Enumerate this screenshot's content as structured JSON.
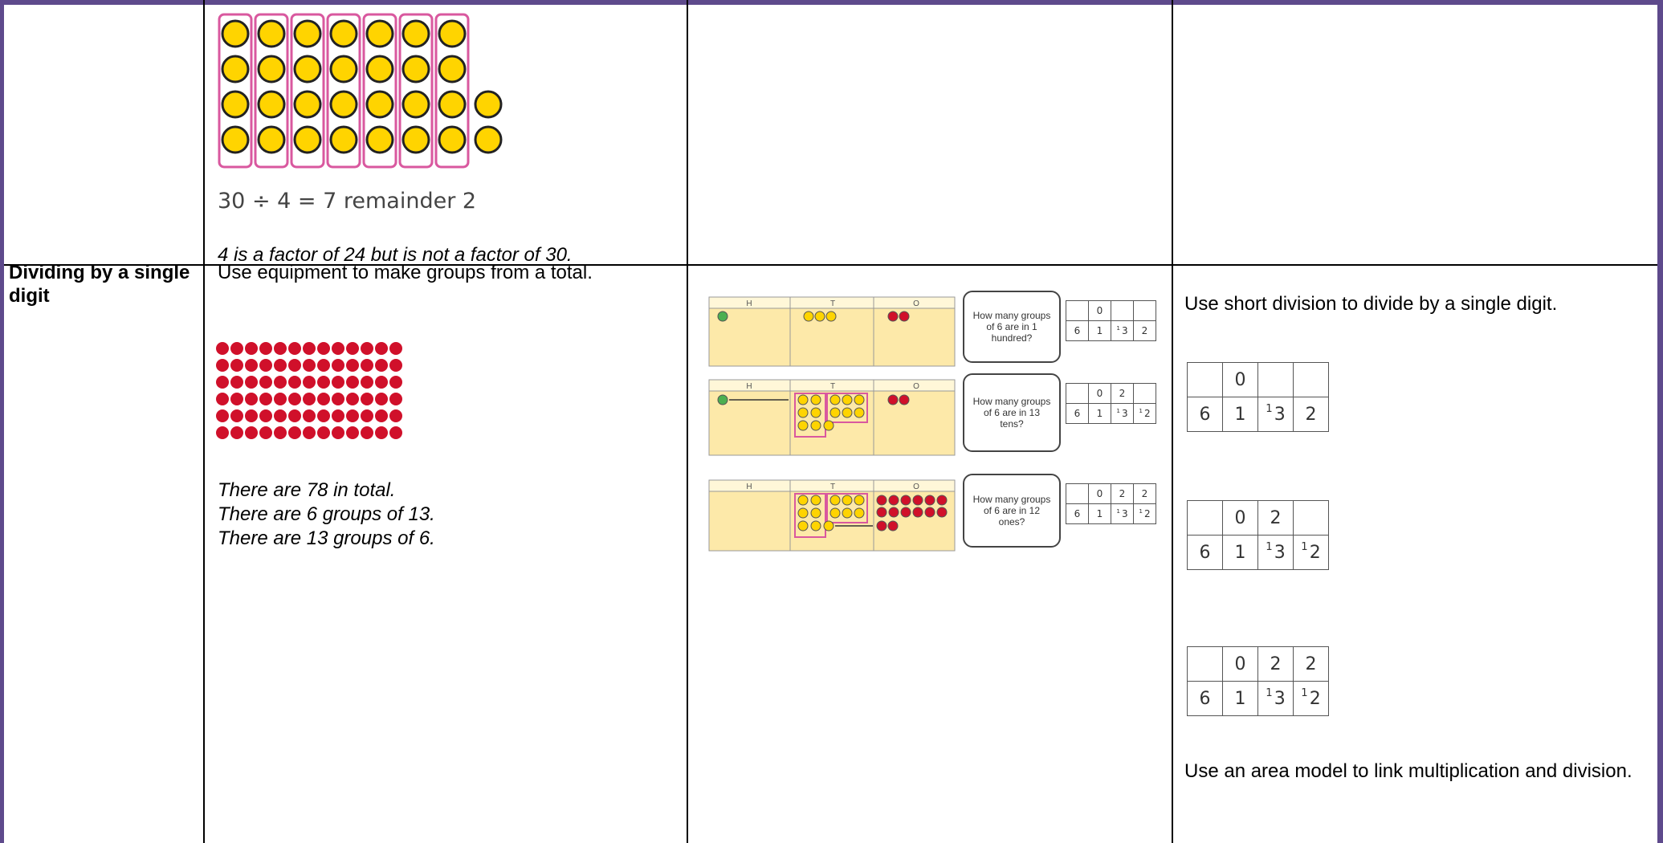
{
  "table": {
    "rows": [
      {
        "cells": {
          "concrete": {
            "equation": "30 ÷ 4 = 7 remainder 2",
            "note": "4 is a factor of 24 but is not a factor of 30."
          }
        }
      },
      {
        "heading": "Dividing by a single digit",
        "cells": {
          "concrete": {
            "text": "Use equipment to make groups from a total.",
            "notes": [
              "There are 78 in total.",
              "There are 6 groups of 13.",
              "There are 13 groups of 6."
            ]
          },
          "pictorial": {
            "place_value_headers": [
              "H",
              "T",
              "O"
            ],
            "steps": [
              {
                "question": "How many groups of 6 are in 1 hundred?",
                "division": {
                  "quotient": [
                    "0"
                  ],
                  "divisor": "6",
                  "dividend": [
                    {
                      "digit": "1"
                    },
                    {
                      "carry": "1",
                      "digit": "3"
                    },
                    {
                      "digit": "2"
                    }
                  ]
                }
              },
              {
                "question": "How many groups of 6 are in 13 tens?",
                "division": {
                  "quotient": [
                    "0",
                    "2"
                  ],
                  "divisor": "6",
                  "dividend": [
                    {
                      "digit": "1"
                    },
                    {
                      "carry": "1",
                      "digit": "3"
                    },
                    {
                      "carry": "1",
                      "digit": "2"
                    }
                  ]
                }
              },
              {
                "question": "How many groups of 6 are in 12 ones?",
                "division": {
                  "quotient": [
                    "0",
                    "2",
                    "2"
                  ],
                  "divisor": "6",
                  "dividend": [
                    {
                      "digit": "1"
                    },
                    {
                      "carry": "1",
                      "digit": "3"
                    },
                    {
                      "carry": "1",
                      "digit": "2"
                    }
                  ]
                }
              }
            ]
          },
          "abstract": {
            "text": "Use short division to divide by a single digit.",
            "divisions": [
              {
                "quotient": [
                  "0"
                ],
                "divisor": "6",
                "dividend": [
                  {
                    "digit": "1"
                  },
                  {
                    "carry": "1",
                    "digit": "3"
                  },
                  {
                    "digit": "2"
                  }
                ]
              },
              {
                "quotient": [
                  "0",
                  "2"
                ],
                "divisor": "6",
                "dividend": [
                  {
                    "digit": "1"
                  },
                  {
                    "carry": "1",
                    "digit": "3"
                  },
                  {
                    "carry": "1",
                    "digit": "2"
                  }
                ]
              },
              {
                "quotient": [
                  "0",
                  "2",
                  "2"
                ],
                "divisor": "6",
                "dividend": [
                  {
                    "digit": "1"
                  },
                  {
                    "carry": "1",
                    "digit": "3"
                  },
                  {
                    "carry": "1",
                    "digit": "2"
                  }
                ]
              }
            ],
            "area_model_text": "Use an area model to link multiplication and division."
          }
        }
      }
    ]
  }
}
